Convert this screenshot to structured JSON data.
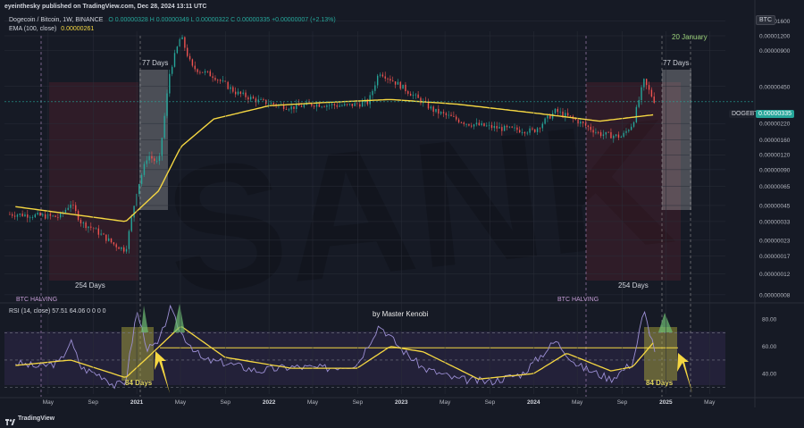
{
  "header": {
    "publisher": "eyeinthesky published on TradingView.com, Dec 28, 2024 13:11 UTC",
    "symbol_line": "Dogecoin / Bitcoin, 1W, BINANCE",
    "ohlc": "O 0.00000328  H 0.00000349  L 0.00000322  C 0.00000335  +0.00000007 (+2.13%)",
    "ema_label": "EMA (100, close)",
    "ema_value": "0.00000261",
    "currency": "BTC",
    "ticker": "DOGEBTC",
    "ticker_price": "0.00000335"
  },
  "footer": {
    "brand": "TradingView"
  },
  "colors": {
    "background": "#161a25",
    "up_candle": "#26a69a",
    "down_candle": "#ef5350",
    "ema_line": "#f5d742",
    "rsi_line": "#9c8fd4",
    "rsi_ma": "#f5d742",
    "annotation_text": "#e0d55a",
    "highlight_green": "#6fbf73",
    "halving_text": "#c39bd3"
  },
  "annotations": {
    "days_77_left": "77 Days",
    "days_77_right": "77 Days",
    "days_254_left": "254 Days",
    "days_254_right": "254 Days",
    "date_20_january": "20 January",
    "halving_left": "BTC HALVING",
    "halving_right": "BTC HALVING",
    "author": "by Master Kenobi",
    "days_84_left": "84 Days",
    "days_84_right": "84 Days"
  },
  "chart_data": [
    {
      "type": "candlestick",
      "title": "Dogecoin / Bitcoin, 1W, BINANCE",
      "y_scale": "log",
      "x_range": [
        "2020-02",
        "2025-05"
      ],
      "x_tick_labels": [
        "May",
        "Sep",
        "2021",
        "May",
        "Sep",
        "2022",
        "May",
        "Sep",
        "2023",
        "May",
        "Sep",
        "2024",
        "May",
        "Sep",
        "2025",
        "May"
      ],
      "y_tick_labels": [
        "0.00000008",
        "0.00000012",
        "0.00000017",
        "0.00000023",
        "0.00000033",
        "0.00000045",
        "0.00000065",
        "0.00000090",
        "0.00000120",
        "0.00000160",
        "0.00000220",
        "0.00000450",
        "0.00000900",
        "0.00001200",
        "0.00001600"
      ],
      "price_path": [
        {
          "date": "2020-02",
          "price": 3.8e-07
        },
        {
          "date": "2020-04",
          "price": 3.7e-07
        },
        {
          "date": "2020-06",
          "price": 3.6e-07
        },
        {
          "date": "2020-07",
          "price": 4.7e-07
        },
        {
          "date": "2020-08",
          "price": 3.2e-07
        },
        {
          "date": "2020-09",
          "price": 2.9e-07
        },
        {
          "date": "2020-11",
          "price": 2.1e-07
        },
        {
          "date": "2020-12",
          "price": 1.9e-07
        },
        {
          "date": "2021-01",
          "price": 6e-07
        },
        {
          "date": "2021-02",
          "price": 1.2e-06
        },
        {
          "date": "2021-03",
          "price": 1e-06
        },
        {
          "date": "2021-04",
          "price": 6e-06
        },
        {
          "date": "2021-05",
          "price": 1.2e-05
        },
        {
          "date": "2021-06",
          "price": 6.5e-06
        },
        {
          "date": "2021-08",
          "price": 5.5e-06
        },
        {
          "date": "2021-10",
          "price": 4e-06
        },
        {
          "date": "2021-12",
          "price": 3.4e-06
        },
        {
          "date": "2022-03",
          "price": 3e-06
        },
        {
          "date": "2022-05",
          "price": 3.2e-06
        },
        {
          "date": "2022-08",
          "price": 3.1e-06
        },
        {
          "date": "2022-10",
          "price": 3.3e-06
        },
        {
          "date": "2022-11",
          "price": 6e-06
        },
        {
          "date": "2023-01",
          "price": 4.5e-06
        },
        {
          "date": "2023-04",
          "price": 2.8e-06
        },
        {
          "date": "2023-07",
          "price": 2.2e-06
        },
        {
          "date": "2023-10",
          "price": 2e-06
        },
        {
          "date": "2024-01",
          "price": 1.9e-06
        },
        {
          "date": "2024-03",
          "price": 2.8e-06
        },
        {
          "date": "2024-05",
          "price": 2.3e-06
        },
        {
          "date": "2024-07",
          "price": 1.8e-06
        },
        {
          "date": "2024-09",
          "price": 1.7e-06
        },
        {
          "date": "2024-10",
          "price": 2.2e-06
        },
        {
          "date": "2024-11",
          "price": 5e-06
        },
        {
          "date": "2024-12",
          "price": 3.35e-06
        }
      ],
      "ema_100": [
        {
          "date": "2020-02",
          "value": 4.4e-07
        },
        {
          "date": "2020-12",
          "value": 3.3e-07
        },
        {
          "date": "2021-03",
          "value": 6e-07
        },
        {
          "date": "2021-05",
          "value": 1.4e-06
        },
        {
          "date": "2021-08",
          "value": 2.4e-06
        },
        {
          "date": "2022-01",
          "value": 3.1e-06
        },
        {
          "date": "2022-06",
          "value": 3.3e-06
        },
        {
          "date": "2022-12",
          "value": 3.5e-06
        },
        {
          "date": "2023-06",
          "value": 3.2e-06
        },
        {
          "date": "2024-01",
          "value": 2.7e-06
        },
        {
          "date": "2024-07",
          "value": 2.3e-06
        },
        {
          "date": "2024-12",
          "value": 2.61e-06
        }
      ]
    },
    {
      "type": "line",
      "title": "RSI (14, close)",
      "legend": "RSI (14, close)  57.51  64.06  0  0  0  0",
      "rsi_value": 57.51,
      "rsi_ma_value": 64.06,
      "y_tick_labels": [
        "40.00",
        "60.00",
        "80.00"
      ],
      "ylim": [
        25,
        90
      ],
      "reference_level": 59,
      "rsi": [
        {
          "date": "2020-02",
          "value": 48
        },
        {
          "date": "2020-04",
          "value": 45
        },
        {
          "date": "2020-06",
          "value": 48
        },
        {
          "date": "2020-07",
          "value": 64
        },
        {
          "date": "2020-08",
          "value": 44
        },
        {
          "date": "2020-10",
          "value": 38
        },
        {
          "date": "2020-11",
          "value": 31
        },
        {
          "date": "2020-12",
          "value": 34
        },
        {
          "date": "2021-01",
          "value": 86
        },
        {
          "date": "2021-02",
          "value": 58
        },
        {
          "date": "2021-03",
          "value": 62
        },
        {
          "date": "2021-04",
          "value": 88
        },
        {
          "date": "2021-05",
          "value": 70
        },
        {
          "date": "2021-07",
          "value": 50
        },
        {
          "date": "2021-09",
          "value": 48
        },
        {
          "date": "2021-12",
          "value": 42
        },
        {
          "date": "2022-03",
          "value": 45
        },
        {
          "date": "2022-06",
          "value": 44
        },
        {
          "date": "2022-09",
          "value": 47
        },
        {
          "date": "2022-11",
          "value": 76
        },
        {
          "date": "2023-01",
          "value": 58
        },
        {
          "date": "2023-03",
          "value": 44
        },
        {
          "date": "2023-06",
          "value": 36
        },
        {
          "date": "2023-09",
          "value": 34
        },
        {
          "date": "2023-12",
          "value": 40
        },
        {
          "date": "2024-03",
          "value": 64
        },
        {
          "date": "2024-05",
          "value": 46
        },
        {
          "date": "2024-08",
          "value": 36
        },
        {
          "date": "2024-10",
          "value": 48
        },
        {
          "date": "2024-11",
          "value": 86
        },
        {
          "date": "2024-12",
          "value": 57.51
        }
      ],
      "rsi_ma": [
        {
          "date": "2020-02",
          "value": 46
        },
        {
          "date": "2020-07",
          "value": 50
        },
        {
          "date": "2020-12",
          "value": 37
        },
        {
          "date": "2021-02",
          "value": 52
        },
        {
          "date": "2021-05",
          "value": 75
        },
        {
          "date": "2021-09",
          "value": 52
        },
        {
          "date": "2022-03",
          "value": 44
        },
        {
          "date": "2022-09",
          "value": 44
        },
        {
          "date": "2022-12",
          "value": 60
        },
        {
          "date": "2023-03",
          "value": 56
        },
        {
          "date": "2023-08",
          "value": 36
        },
        {
          "date": "2024-01",
          "value": 40
        },
        {
          "date": "2024-04",
          "value": 55
        },
        {
          "date": "2024-08",
          "value": 42
        },
        {
          "date": "2024-10",
          "value": 45
        },
        {
          "date": "2024-12",
          "value": 64.06
        }
      ]
    }
  ]
}
